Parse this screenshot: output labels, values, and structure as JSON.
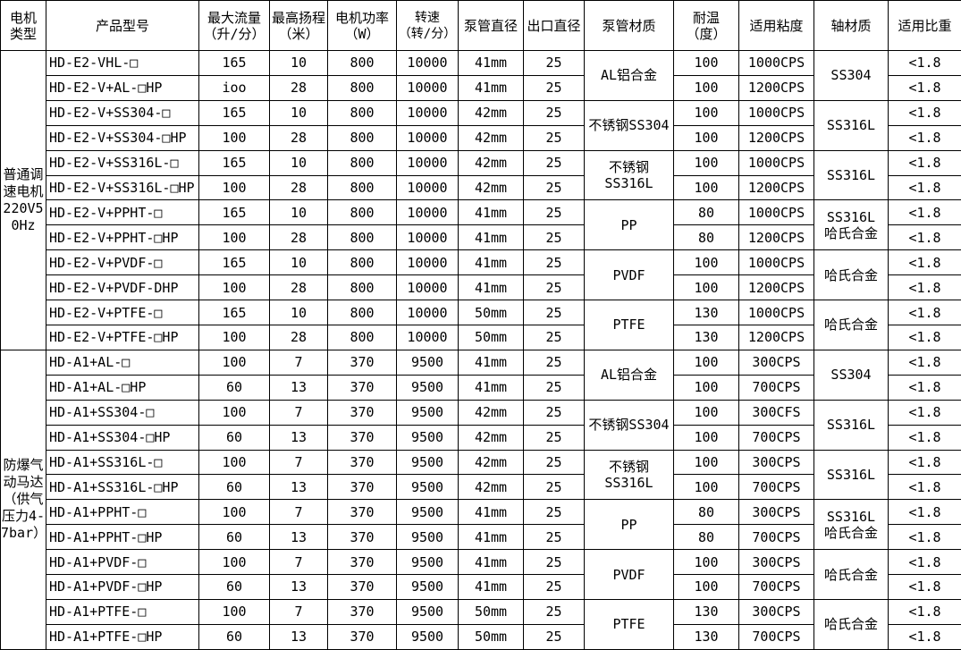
{
  "table": {
    "headers": [
      "电机\n类型",
      "产品型号",
      "最大流量\n（升/分）",
      "最高扬程\n（米）",
      "电机功率\n（W）",
      "转速\n（转/分）",
      "泵管直径",
      "出口直径",
      "泵管材质",
      "耐温\n（度）",
      "适用粘度",
      "轴材质",
      "适用比重"
    ],
    "sections": [
      {
        "motor_type": "普通调\n速电机\n220V5\n0Hz",
        "groups": [
          {
            "material": "AL铝合金",
            "shaft": "SS304",
            "rows": [
              {
                "model": "HD-E2-VHL-□",
                "flow": "165",
                "head": "10",
                "power": "800",
                "speed": "10000",
                "tube_dia": "41mm",
                "outlet_dia": "25",
                "temp": "100",
                "viscosity": "1000CPS",
                "gravity": "<1.8"
              },
              {
                "model": "HD-E2-V+AL-□HP",
                "flow": "ioo",
                "head": "28",
                "power": "800",
                "speed": "10000",
                "tube_dia": "41mm",
                "outlet_dia": "25",
                "temp": "100",
                "viscosity": "1200CPS",
                "gravity": "<1.8"
              }
            ]
          },
          {
            "material": "不锈钢SS304",
            "shaft": "SS316L",
            "rows": [
              {
                "model": "HD-E2-V+SS304-□",
                "flow": "165",
                "head": "10",
                "power": "800",
                "speed": "10000",
                "tube_dia": "42mm",
                "outlet_dia": "25",
                "temp": "100",
                "viscosity": "1000CPS",
                "gravity": "<1.8"
              },
              {
                "model": "HD-E2-V+SS304-□HP",
                "flow": "100",
                "head": "28",
                "power": "800",
                "speed": "10000",
                "tube_dia": "42mm",
                "outlet_dia": "25",
                "temp": "100",
                "viscosity": "1200CPS",
                "gravity": "<1.8"
              }
            ]
          },
          {
            "material": "不锈钢SS316L",
            "shaft": "SS316L",
            "rows": [
              {
                "model": "HD-E2-V+SS316L-□",
                "flow": "165",
                "head": "10",
                "power": "800",
                "speed": "10000",
                "tube_dia": "42mm",
                "outlet_dia": "25",
                "temp": "100",
                "viscosity": "1000CPS",
                "gravity": "<1.8"
              },
              {
                "model": "HD-E2-V+SS316L-□HP",
                "flow": "100",
                "head": "28",
                "power": "800",
                "speed": "10000",
                "tube_dia": "42mm",
                "outlet_dia": "25",
                "temp": "100",
                "viscosity": "1200CPS",
                "gravity": "<1.8"
              }
            ]
          },
          {
            "material": "PP",
            "shaft": "SS316L\n哈氏合金",
            "rows": [
              {
                "model": "HD-E2-V+PPHT-□",
                "flow": "165",
                "head": "10",
                "power": "800",
                "speed": "10000",
                "tube_dia": "41mm",
                "outlet_dia": "25",
                "temp": "80",
                "viscosity": "1000CPS",
                "gravity": "<1.8"
              },
              {
                "model": "HD-E2-V+PPHT-□HP",
                "flow": "100",
                "head": "28",
                "power": "800",
                "speed": "10000",
                "tube_dia": "41mm",
                "outlet_dia": "25",
                "temp": "80",
                "viscosity": "1200CPS",
                "gravity": "<1.8"
              }
            ]
          },
          {
            "material": "PVDF",
            "shaft": "哈氏合金",
            "rows": [
              {
                "model": "HD-E2-V+PVDF-□",
                "flow": "165",
                "head": "10",
                "power": "800",
                "speed": "10000",
                "tube_dia": "41mm",
                "outlet_dia": "25",
                "temp": "100",
                "viscosity": "1000CPS",
                "gravity": "<1.8"
              },
              {
                "model": "HD-E2-V+PVDF-DHP",
                "flow": "100",
                "head": "28",
                "power": "800",
                "speed": "10000",
                "tube_dia": "41mm",
                "outlet_dia": "25",
                "temp": "100",
                "viscosity": "1200CPS",
                "gravity": "<1.8"
              }
            ]
          },
          {
            "material": "PTFE",
            "shaft": "哈氏合金",
            "rows": [
              {
                "model": "HD-E2-V+PTFE-□",
                "flow": "165",
                "head": "10",
                "power": "800",
                "speed": "10000",
                "tube_dia": "50mm",
                "outlet_dia": "25",
                "temp": "130",
                "viscosity": "1000CPS",
                "gravity": "<1.8"
              },
              {
                "model": "HD-E2-V+PTFE-□HP",
                "flow": "100",
                "head": "28",
                "power": "800",
                "speed": "10000",
                "tube_dia": "50mm",
                "outlet_dia": "25",
                "temp": "130",
                "viscosity": "1200CPS",
                "gravity": "<1.8"
              }
            ]
          }
        ]
      },
      {
        "motor_type": "防爆气\n动马达\n（供气\n压力4-\n7bar）",
        "groups": [
          {
            "material": "AL铝合金",
            "shaft": "SS304",
            "rows": [
              {
                "model": "HD-A1+AL-□",
                "flow": "100",
                "head": "7",
                "power": "370",
                "speed": "9500",
                "tube_dia": "41mm",
                "outlet_dia": "25",
                "temp": "100",
                "viscosity": "300CPS",
                "gravity": "<1.8"
              },
              {
                "model": "HD-A1+AL-□HP",
                "flow": "60",
                "head": "13",
                "power": "370",
                "speed": "9500",
                "tube_dia": "41mm",
                "outlet_dia": "25",
                "temp": "100",
                "viscosity": "700CPS",
                "gravity": "<1.8"
              }
            ]
          },
          {
            "material": "不锈钢SS304",
            "shaft": "SS316L",
            "rows": [
              {
                "model": "HD-A1+SS304-□",
                "flow": "100",
                "head": "7",
                "power": "370",
                "speed": "9500",
                "tube_dia": "42mm",
                "outlet_dia": "25",
                "temp": "100",
                "viscosity": "300CFS",
                "gravity": "<1.8"
              },
              {
                "model": "HD-A1+SS304-□HP",
                "flow": "60",
                "head": "13",
                "power": "370",
                "speed": "9500",
                "tube_dia": "42mm",
                "outlet_dia": "25",
                "temp": "100",
                "viscosity": "700CPS",
                "gravity": "<1.8"
              }
            ]
          },
          {
            "material": "不锈钢SS316L",
            "shaft": "SS316L",
            "rows": [
              {
                "model": "HD-A1+SS316L-□",
                "flow": "100",
                "head": "7",
                "power": "370",
                "speed": "9500",
                "tube_dia": "42mm",
                "outlet_dia": "25",
                "temp": "100",
                "viscosity": "300CPS",
                "gravity": "<1.8"
              },
              {
                "model": "HD-A1+SS316L-□HP",
                "flow": "60",
                "head": "13",
                "power": "370",
                "speed": "9500",
                "tube_dia": "42mm",
                "outlet_dia": "25",
                "temp": "100",
                "viscosity": "700CPS",
                "gravity": "<1.8"
              }
            ]
          },
          {
            "material": "PP",
            "shaft": "SS316L\n哈氏合金",
            "rows": [
              {
                "model": "HD-A1+PPHT-□",
                "flow": "100",
                "head": "7",
                "power": "370",
                "speed": "9500",
                "tube_dia": "41mm",
                "outlet_dia": "25",
                "temp": "80",
                "viscosity": "300CPS",
                "gravity": "<1.8"
              },
              {
                "model": "HD-A1+PPHT-□HP",
                "flow": "60",
                "head": "13",
                "power": "370",
                "speed": "9500",
                "tube_dia": "41mm",
                "outlet_dia": "25",
                "temp": "80",
                "viscosity": "700CPS",
                "gravity": "<1.8"
              }
            ]
          },
          {
            "material": "PVDF",
            "shaft": "哈氏合金",
            "rows": [
              {
                "model": "HD-A1+PVDF-□",
                "flow": "100",
                "head": "7",
                "power": "370",
                "speed": "9500",
                "tube_dia": "41mm",
                "outlet_dia": "25",
                "temp": "100",
                "viscosity": "300CPS",
                "gravity": "<1.8"
              },
              {
                "model": "HD-A1+PVDF-□HP",
                "flow": "60",
                "head": "13",
                "power": "370",
                "speed": "9500",
                "tube_dia": "41mm",
                "outlet_dia": "25",
                "temp": "100",
                "viscosity": "700CPS",
                "gravity": "<1.8"
              }
            ]
          },
          {
            "material": "PTFE",
            "shaft": "哈氏合金",
            "rows": [
              {
                "model": "HD-A1+PTFE-□",
                "flow": "100",
                "head": "7",
                "power": "370",
                "speed": "9500",
                "tube_dia": "50mm",
                "outlet_dia": "25",
                "temp": "130",
                "viscosity": "300CPS",
                "gravity": "<1.8"
              },
              {
                "model": "HD-A1+PTFE-□HP",
                "flow": "60",
                "head": "13",
                "power": "370",
                "speed": "9500",
                "tube_dia": "50mm",
                "outlet_dia": "25",
                "temp": "130",
                "viscosity": "700CPS",
                "gravity": "<1.8"
              }
            ]
          }
        ]
      }
    ]
  }
}
